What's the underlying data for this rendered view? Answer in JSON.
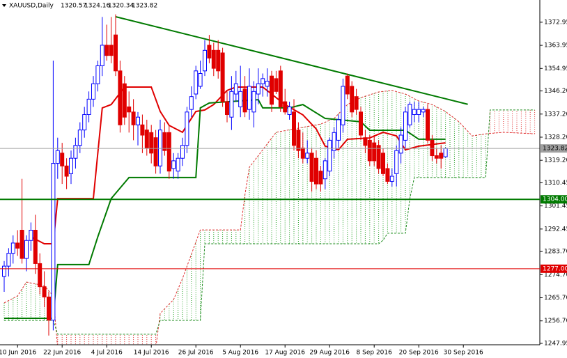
{
  "chart_data": {
    "type": "candlestick",
    "title": "XAUUSD,Daily",
    "up_color": "#0000ff",
    "down_color": "#e00000",
    "categories": [
      null,
      null,
      null,
      "10 Jun 2016",
      null,
      null,
      null,
      null,
      null,
      null,
      null,
      null,
      null,
      "22 Jun 2016",
      null,
      null,
      null,
      null,
      null,
      null,
      null,
      null,
      null,
      "4 Jul 2016",
      null,
      null,
      null,
      null,
      null,
      null,
      null,
      null,
      null,
      "14 Jul 2016",
      null,
      null,
      null,
      null,
      null,
      null,
      null,
      null,
      null,
      "26 Jul 2016",
      null,
      null,
      null,
      null,
      null,
      null,
      null,
      null,
      null,
      "5 Aug 2016",
      null,
      null,
      null,
      null,
      null,
      null,
      null,
      null,
      null,
      "17 Aug 2016",
      null,
      null,
      null,
      null,
      null,
      null,
      null,
      null,
      null,
      "29 Aug 2016",
      null,
      null,
      null,
      null,
      null,
      null,
      null,
      null,
      null,
      "8 Sep 2016",
      null,
      null,
      null,
      null,
      null,
      null,
      null,
      null,
      null,
      "20 Sep 2016",
      null,
      null,
      null,
      null,
      null,
      null,
      null,
      null,
      null,
      "30 Sep 2016",
      null,
      null,
      null,
      null,
      null,
      null,
      null,
      null,
      null,
      null,
      null,
      null,
      null,
      null,
      null,
      null
    ],
    "open": [
      1274,
      1278,
      1283,
      1287,
      1292,
      1281,
      1288,
      1292,
      1279,
      1270,
      1266,
      1257,
      1318,
      1322,
      1317,
      1314,
      1320,
      1325,
      1331,
      1337,
      1343,
      1349,
      1356,
      1364,
      1364,
      1368,
      1354,
      1349,
      1340,
      1338,
      1333,
      1333,
      1331,
      1330,
      1328,
      1317,
      1330,
      1330,
      1316,
      1315,
      1320,
      1325,
      1339,
      1345,
      1348,
      1354,
      1364,
      1362,
      1362,
      1361,
      1342,
      1336,
      1345,
      1340,
      1347,
      1339,
      1338,
      1345,
      1349,
      1348,
      1352,
      1351,
      1354,
      1342,
      1337,
      1338,
      1331,
      1324,
      1320,
      1322,
      1320,
      1315,
      1312,
      1315,
      1323,
      1327,
      1333,
      1352,
      1348,
      1344,
      1338,
      1328,
      1327,
      1326,
      1325,
      1322,
      1316,
      1311,
      1314,
      1322,
      1327,
      1333,
      1337,
      1337,
      1338,
      1339,
      1327,
      1321,
      1322,
      1320.57,
      null,
      null,
      null,
      null,
      null,
      null,
      null,
      null,
      null,
      null,
      null,
      null,
      null,
      null,
      null,
      null,
      null,
      null,
      null,
      null
    ],
    "high": [
      1280,
      1285,
      1290,
      1292,
      1312,
      1290,
      1295,
      1298,
      1283,
      1276,
      1268,
      1358,
      1328,
      1326,
      1320,
      1323,
      1328,
      1334,
      1340,
      1346,
      1352,
      1358,
      1375,
      1372,
      1375,
      1376,
      1358,
      1352,
      1346,
      1343,
      1338,
      1337,
      1335,
      1333,
      1331,
      1335,
      1334,
      1333,
      1322,
      1322,
      1328,
      1340,
      1348,
      1356,
      1358,
      1366,
      1368,
      1365,
      1366,
      1363,
      1346,
      1352,
      1354,
      1356,
      1352,
      1355,
      1350,
      1355,
      1353,
      1355,
      1354,
      1354,
      1356,
      1347,
      1342,
      1343,
      1334,
      1330,
      1327,
      1324,
      1323,
      1317,
      1320,
      1328,
      1332,
      1337,
      1351,
      1353,
      1350,
      1347,
      1340,
      1331,
      1329,
      1329,
      1327,
      1324,
      1318,
      1316,
      1325,
      1332,
      1340,
      1342,
      1342,
      1342,
      1340,
      1341,
      1329,
      1324,
      1325,
      1324.16,
      null,
      null,
      null,
      null,
      null,
      null,
      null,
      null,
      null,
      null,
      null,
      null,
      null,
      null,
      null,
      null,
      null,
      null,
      null,
      null
    ],
    "low": [
      1268,
      1274,
      1279,
      1282,
      1279,
      1276,
      1284,
      1275,
      1267,
      1262,
      1251,
      1253,
      1312,
      1310,
      1308,
      1310,
      1316,
      1322,
      1328,
      1334,
      1340,
      1346,
      1352,
      1358,
      1357,
      1352,
      1330,
      1333,
      1330,
      1327,
      1325,
      1322,
      1321,
      1318,
      1314,
      1314,
      1321,
      1312,
      1312,
      1312,
      1317,
      1322,
      1336,
      1343,
      1347,
      1352,
      1357,
      1352,
      1351,
      1340,
      1334,
      1331,
      1342,
      1336,
      1336,
      1335,
      1332,
      1341,
      1344,
      1344,
      1338,
      1345,
      1338,
      1337,
      1335,
      1323,
      1320,
      1318,
      1318,
      1307,
      1308,
      1307,
      1308,
      1313,
      1320,
      1324,
      1330,
      1343,
      1336,
      1337,
      1327,
      1322,
      1317,
      1317,
      1314,
      1313,
      1310,
      1309,
      1309,
      1318,
      1324,
      1332,
      1334,
      1334,
      1336,
      1326,
      1319,
      1318,
      1316,
      1320.34,
      null,
      null,
      null,
      null,
      null,
      null,
      null,
      null,
      null,
      null,
      null,
      null,
      null,
      null,
      null,
      null,
      null,
      null,
      null,
      null
    ],
    "close": [
      1278,
      1283,
      1287,
      1285,
      1281,
      1288,
      1292,
      1279,
      1270,
      1266,
      1257,
      1318,
      1323,
      1317,
      1313,
      1320,
      1325,
      1331,
      1337,
      1343,
      1349,
      1356,
      1364,
      1360,
      1360,
      1354,
      1333,
      1336,
      1338,
      1333,
      1336,
      1329,
      1324,
      1322,
      1317,
      1331,
      1323,
      1315,
      1319,
      1320,
      1325,
      1338,
      1344,
      1354,
      1353,
      1362,
      1359,
      1355,
      1354,
      1342,
      1337,
      1346,
      1349,
      1346,
      1338,
      1348,
      1346,
      1349,
      1351,
      1350,
      1341,
      1346,
      1340,
      1338,
      1340,
      1325,
      1323,
      1320,
      1322,
      1311,
      1310,
      1310,
      1319,
      1327,
      1330,
      1335,
      1348,
      1345,
      1338,
      1339,
      1329,
      1325,
      1319,
      1319,
      1316,
      1314,
      1311,
      1313,
      1323,
      1329,
      1338,
      1341,
      1339,
      1339,
      1339,
      1327,
      1321,
      1320,
      1320,
      1323.82,
      null,
      null,
      null,
      null,
      null,
      null,
      null,
      null,
      null,
      null,
      null,
      null,
      null,
      null,
      null,
      null,
      null,
      null,
      null,
      null
    ],
    "ylim": [
      1247.4,
      1381.6
    ],
    "yticks": [
      1372.95,
      1363.95,
      1354.95,
      {
        "value": 1346.2,
        "label": "1346.20"
      },
      {
        "value": 1337.2,
        "label": "1337.20"
      },
      {
        "value": 1328.2,
        "label": "1328.20"
      },
      {
        "value": 1319.2,
        "label": "1319.20"
      },
      1310.45,
      1301.45,
      1292.45,
      {
        "value": 1283.7,
        "label": "1283.70"
      },
      {
        "value": 1274.7,
        "label": "1274.70"
      },
      {
        "value": 1265.7,
        "label": "1265.70"
      },
      {
        "value": 1256.7,
        "label": "1256.70"
      },
      1247.95
    ],
    "cloud": {
      "bull_color": "#22a022",
      "bear_color": "#e03030",
      "span_a": {
        "color": "#e03030",
        "x": [
          0,
          3,
          5,
          9,
          11,
          12,
          34,
          35,
          38,
          40,
          44,
          53,
          54,
          55,
          58,
          61,
          65,
          71,
          74,
          77,
          80,
          84,
          87,
          90,
          93,
          96,
          99,
          102,
          105,
          108,
          112,
          119
        ],
        "values": [
          1263.7,
          1266.4,
          1271.8,
          1270.4,
          1266.4,
          1246,
          1246,
          1259.6,
          1265,
          1273.2,
          1292.1,
          1292.1,
          1305.7,
          1316.5,
          1323.3,
          1330.1,
          1331.4,
          1333.3,
          1335.5,
          1340.9,
          1343.6,
          1345.8,
          1346.4,
          1345,
          1342.3,
          1340.9,
          1338.2,
          1334.2,
          1328.7,
          1329.5,
          1330.1,
          1329.5
        ]
      },
      "span_b": {
        "color": "#1a8a1a",
        "x": [
          0,
          11,
          12,
          34,
          35,
          44,
          45,
          53,
          84,
          85,
          86,
          90,
          91,
          92,
          108,
          109,
          119
        ],
        "values": [
          1256.9,
          1256.9,
          1251.5,
          1251.5,
          1256.9,
          1256.9,
          1286.7,
          1286.7,
          1286.7,
          1288.1,
          1290.8,
          1290.8,
          1304.3,
          1312.5,
          1312.5,
          1338.8,
          1338.8
        ]
      }
    },
    "lines": [
      {
        "color": "#e00000",
        "x": [
          6,
          9,
          11,
          12,
          20,
          22,
          24,
          27,
          33,
          35,
          37,
          40,
          43,
          45,
          47,
          50,
          52,
          58,
          61,
          63,
          67,
          70,
          72,
          75,
          77,
          82,
          85,
          88,
          90,
          93,
          99
        ],
        "values": [
          1289.4,
          1286.7,
          1286.7,
          1304.3,
          1304.3,
          1339.6,
          1340.9,
          1347.7,
          1347.7,
          1338.2,
          1332.8,
          1330.1,
          1338.2,
          1338.8,
          1340.9,
          1346.4,
          1347.7,
          1347.7,
          1343.6,
          1340.9,
          1336.9,
          1331.4,
          1324.7,
          1323.3,
          1327.4,
          1327.9,
          1330.1,
          1328.7,
          1323.3,
          1324.7,
          1326
        ]
      },
      {
        "color": "#007a00",
        "x": [
          0,
          11,
          12,
          19,
          21,
          24,
          28,
          43,
          44,
          46,
          57,
          58,
          64,
          67,
          72,
          80,
          82,
          90,
          93,
          99
        ],
        "values": [
          1257.7,
          1257.7,
          1278.6,
          1278.6,
          1289.4,
          1304.3,
          1312.5,
          1312.5,
          1339.6,
          1341.5,
          1342.8,
          1339.6,
          1339.6,
          1340.9,
          1335.5,
          1334.2,
          1330.9,
          1330.9,
          1327.4,
          1327.4
        ]
      },
      {
        "color": "#007a00",
        "x": [
          25,
          104
        ],
        "values": [
          1375.1,
          1341
        ]
      }
    ],
    "levels": [
      {
        "value": 1304,
        "label": "1304.00",
        "color": "#007a00"
      },
      {
        "value": 1277,
        "label": "1277.00",
        "color": "#e00000"
      }
    ],
    "price_line_color": "#a0a0a0"
  }
}
